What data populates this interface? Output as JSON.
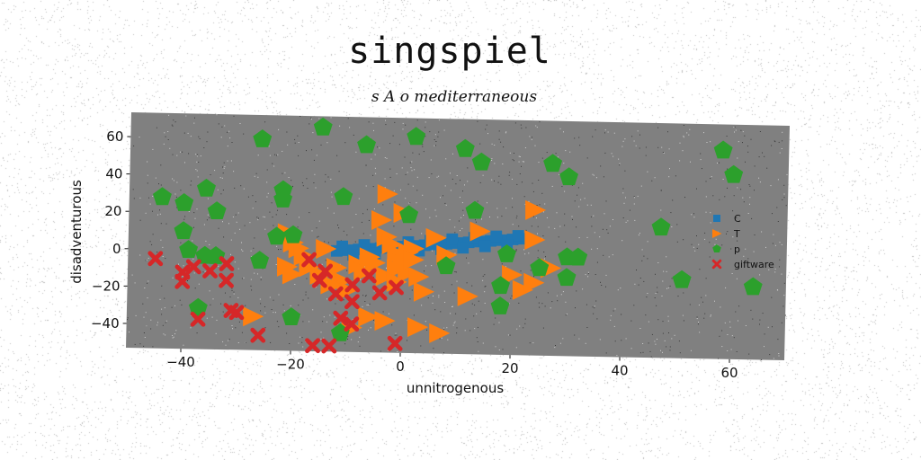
{
  "title": "singspiel",
  "chart_data": {
    "type": "scatter",
    "title": "s A o mediterraneous",
    "xlabel": "unnitrogenous",
    "ylabel": "disadventurous",
    "xlim": [
      -50,
      70
    ],
    "ylim": [
      -53,
      73
    ],
    "xticks": [
      -40,
      -20,
      0,
      20,
      40,
      60
    ],
    "yticks": [
      -40,
      -20,
      0,
      20,
      40,
      60
    ],
    "grid": false,
    "legend_position": "right",
    "colors": {
      "plot_bg": "#808080",
      "C": "#1f77b4",
      "T": "#ff7f0e",
      "p": "#2ca02c",
      "giftware": "#d62728"
    },
    "series": [
      {
        "name": "C",
        "marker": "square",
        "color": "#1f77b4",
        "points": [
          [
            -12,
            1
          ],
          [
            -10,
            1.5
          ],
          [
            -8,
            2
          ],
          [
            -6,
            2.5
          ],
          [
            -4,
            3
          ],
          [
            -2,
            3.5
          ],
          [
            0,
            4
          ],
          [
            2,
            4.5
          ],
          [
            4,
            5
          ],
          [
            6,
            5.5
          ],
          [
            8,
            6
          ],
          [
            10,
            6.5
          ],
          [
            12,
            7
          ],
          [
            14,
            7.5
          ],
          [
            16,
            8
          ],
          [
            18,
            8.5
          ],
          [
            20,
            9
          ],
          [
            22,
            9.5
          ],
          [
            -11,
            3.5
          ],
          [
            -7,
            4.5
          ],
          [
            -3,
            5.5
          ],
          [
            1,
            6.5
          ],
          [
            5,
            7.5
          ],
          [
            9,
            8.5
          ],
          [
            13,
            9.5
          ],
          [
            17,
            10.5
          ],
          [
            21,
            11
          ],
          [
            -9,
            -1
          ],
          [
            -5,
            0
          ],
          [
            -1,
            1
          ],
          [
            3,
            2
          ],
          [
            7,
            3
          ],
          [
            11,
            4
          ],
          [
            15,
            5
          ],
          [
            19,
            6
          ]
        ]
      },
      {
        "name": "T",
        "marker": "triangle-right",
        "color": "#ff7f0e",
        "points": [
          [
            -21,
            10
          ],
          [
            -20,
            5
          ],
          [
            -19,
            2
          ],
          [
            -18,
            -2
          ],
          [
            -21,
            -8
          ],
          [
            -20,
            -12
          ],
          [
            -17,
            -8
          ],
          [
            -14,
            2
          ],
          [
            -12,
            -8
          ],
          [
            -11,
            -15
          ],
          [
            -10,
            -20
          ],
          [
            -8,
            -6
          ],
          [
            -7,
            -10
          ],
          [
            -6,
            -2
          ],
          [
            -5,
            -5
          ],
          [
            -4,
            18
          ],
          [
            -3,
            9
          ],
          [
            -3,
            -12
          ],
          [
            -2,
            5
          ],
          [
            -1,
            0
          ],
          [
            -1,
            -8
          ],
          [
            -1,
            -15
          ],
          [
            0,
            22
          ],
          [
            0,
            -5
          ],
          [
            1,
            -10
          ],
          [
            1,
            1
          ],
          [
            2,
            3
          ],
          [
            2,
            -3
          ],
          [
            3,
            -12
          ],
          [
            4,
            -20
          ],
          [
            -6,
            -34
          ],
          [
            -3,
            -36
          ],
          [
            -9,
            -40
          ],
          [
            -27,
            -35
          ],
          [
            3,
            -39
          ],
          [
            7,
            -42
          ],
          [
            6,
            9
          ],
          [
            8,
            0
          ],
          [
            12,
            -22
          ],
          [
            14,
            13
          ],
          [
            20,
            -10
          ],
          [
            22,
            -18
          ],
          [
            24,
            -14
          ],
          [
            24,
            25
          ],
          [
            24,
            9
          ],
          [
            27,
            -6
          ],
          [
            -3,
            32
          ],
          [
            -15,
            -12
          ],
          [
            -13,
            -17
          ]
        ]
      },
      {
        "name": "p",
        "marker": "pentagon",
        "color": "#2ca02c",
        "points": [
          [
            -26,
            60
          ],
          [
            -15,
            67
          ],
          [
            -7,
            58
          ],
          [
            2,
            63
          ],
          [
            11,
            57
          ],
          [
            14,
            50
          ],
          [
            -44,
            28
          ],
          [
            -40,
            25
          ],
          [
            -36,
            33
          ],
          [
            -34,
            21
          ],
          [
            -22,
            33
          ],
          [
            -22,
            28
          ],
          [
            -11,
            30
          ],
          [
            1,
            21
          ],
          [
            13,
            24
          ],
          [
            27,
            50
          ],
          [
            30,
            43
          ],
          [
            -40,
            10
          ],
          [
            -39,
            0
          ],
          [
            -36,
            -3
          ],
          [
            -34,
            -3
          ],
          [
            -26,
            -5
          ],
          [
            -23,
            8
          ],
          [
            -20,
            9
          ],
          [
            -37,
            -31
          ],
          [
            -20,
            -35
          ],
          [
            -11,
            -43
          ],
          [
            8,
            -6
          ],
          [
            19,
            1
          ],
          [
            25,
            -6
          ],
          [
            30,
            -11
          ],
          [
            30,
            0
          ],
          [
            32,
            0
          ],
          [
            18,
            -16
          ],
          [
            18,
            -27
          ],
          [
            47,
            17
          ],
          [
            51,
            -11
          ],
          [
            58,
            59
          ],
          [
            60,
            46
          ],
          [
            64,
            -14
          ]
        ]
      },
      {
        "name": "giftware",
        "marker": "x",
        "color": "#d62728",
        "points": [
          [
            -45,
            -5
          ],
          [
            -40,
            -12
          ],
          [
            -40,
            -17
          ],
          [
            -38,
            -9
          ],
          [
            -35,
            -11
          ],
          [
            -32,
            -7
          ],
          [
            -32,
            -16
          ],
          [
            -31,
            -32
          ],
          [
            -30,
            -33
          ],
          [
            -37,
            -37
          ],
          [
            -26,
            -45
          ],
          [
            -17,
            -4
          ],
          [
            -15,
            -15
          ],
          [
            -14,
            -10
          ],
          [
            -12,
            -22
          ],
          [
            -11,
            -35
          ],
          [
            -9,
            -17
          ],
          [
            -9,
            -26
          ],
          [
            -9,
            -38
          ],
          [
            -6,
            -12
          ],
          [
            -4,
            -21
          ],
          [
            -1,
            -18
          ],
          [
            -1,
            -48
          ],
          [
            -16,
            -50
          ],
          [
            -13,
            -50
          ]
        ]
      }
    ]
  }
}
